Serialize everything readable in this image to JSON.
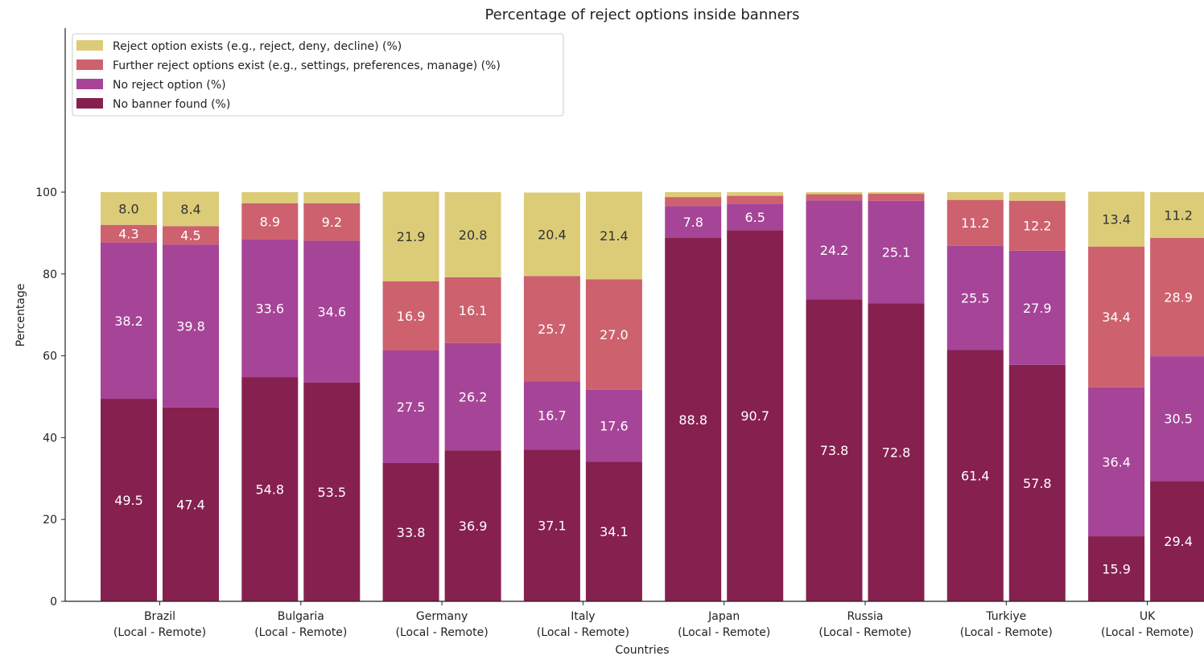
{
  "chart_data": {
    "type": "bar",
    "stacked": true,
    "title": "Percentage of reject options inside banners",
    "xlabel": "Countries",
    "ylabel": "Percentage",
    "ylim": [
      0,
      100
    ],
    "yticks": [
      0,
      20,
      40,
      60,
      80,
      100
    ],
    "grid": false,
    "legend_position": "top-left",
    "categories": [
      "Brazil\n(Local - Remote)",
      "Bulgaria\n(Local - Remote)",
      "Germany\n(Local - Remote)",
      "Italy\n(Local - Remote)",
      "Japan\n(Local - Remote)",
      "Russia\n(Local - Remote)",
      "Turkiye\n(Local - Remote)",
      "UK\n(Local - Remote)"
    ],
    "bars_per_category": [
      "Local",
      "Remote"
    ],
    "series": [
      {
        "name": "No banner found (%)",
        "color": "#86204f",
        "values": [
          [
            49.5,
            47.4
          ],
          [
            54.8,
            53.5
          ],
          [
            33.8,
            36.9
          ],
          [
            37.1,
            34.1
          ],
          [
            88.8,
            90.7
          ],
          [
            73.8,
            72.8
          ],
          [
            61.4,
            57.8
          ],
          [
            15.9,
            29.4
          ]
        ]
      },
      {
        "name": "No reject option (%)",
        "color": "#a64497",
        "values": [
          [
            38.2,
            39.8
          ],
          [
            33.6,
            34.6
          ],
          [
            27.5,
            26.2
          ],
          [
            16.7,
            17.6
          ],
          [
            7.8,
            6.5
          ],
          [
            24.2,
            25.1
          ],
          [
            25.5,
            27.9
          ],
          [
            36.4,
            30.5
          ]
        ]
      },
      {
        "name": "Further reject options exist (e.g., settings, preferences, manage) (%)",
        "color": "#cd616e",
        "values": [
          [
            4.3,
            4.5
          ],
          [
            8.9,
            9.2
          ],
          [
            16.9,
            16.1
          ],
          [
            25.7,
            27.0
          ],
          [
            2.2,
            1.9
          ],
          [
            1.5,
            1.7
          ],
          [
            11.2,
            12.2
          ],
          [
            34.4,
            28.9
          ]
        ]
      },
      {
        "name": "Reject option exists (e.g., reject, deny, decline) (%)",
        "color": "#dccc78",
        "values": [
          [
            8.0,
            8.4
          ],
          [
            2.7,
            2.7
          ],
          [
            21.9,
            20.8
          ],
          [
            20.4,
            21.4
          ],
          [
            1.2,
            0.9
          ],
          [
            0.5,
            0.4
          ],
          [
            1.9,
            2.1
          ],
          [
            13.4,
            11.2
          ]
        ]
      }
    ],
    "label_threshold": 3,
    "legend_order": [
      "Reject option exists (e.g., reject, deny, decline) (%)",
      "Further reject options exist (e.g., settings, preferences, manage) (%)",
      "No reject option (%)",
      "No banner found (%)"
    ]
  }
}
